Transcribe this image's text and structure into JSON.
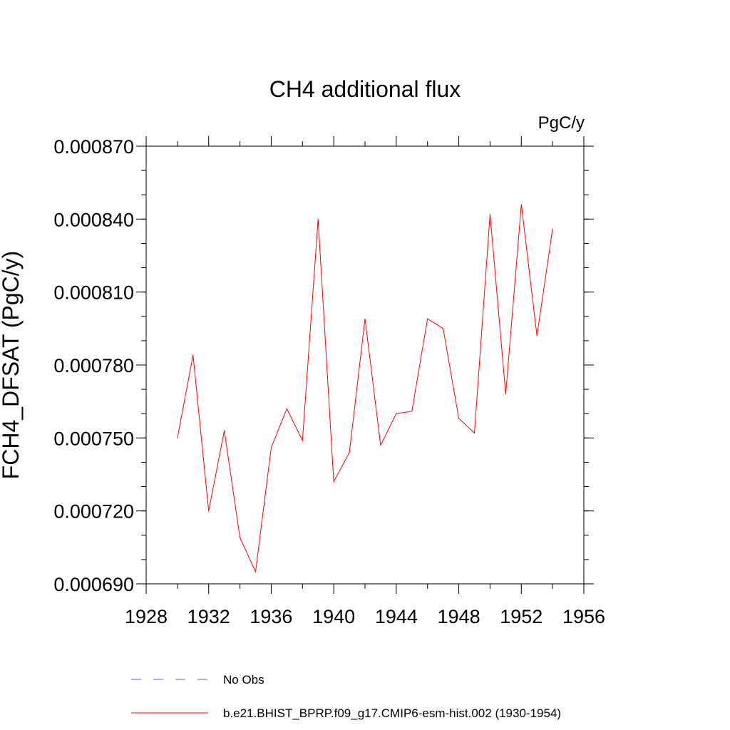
{
  "chart_data": {
    "type": "line",
    "title": "CH4 additional flux",
    "units": "PgC/y",
    "ylabel": "FCH4_DFSAT  (PgC/y)",
    "xlabel": "",
    "xlim": [
      1928,
      1956
    ],
    "ylim": [
      0.00069,
      0.00087
    ],
    "x_ticks": [
      1928,
      1932,
      1936,
      1940,
      1944,
      1948,
      1952,
      1956
    ],
    "x_tick_labels": [
      "1928",
      "1932",
      "1936",
      "1940",
      "1944",
      "1948",
      "1952",
      "1956"
    ],
    "y_ticks": [
      0.00069,
      0.00072,
      0.00075,
      0.00078,
      0.00081,
      0.00084,
      0.00087
    ],
    "y_tick_labels": [
      "0.000690",
      "0.000720",
      "0.000750",
      "0.000780",
      "0.000810",
      "0.000840",
      "0.000870"
    ],
    "grid": false,
    "series": [
      {
        "name": "b.e21.BHIST_BPRP.f09_g17.CMIP6-esm-hist.002 (1930-1954)",
        "color": "#ff0000",
        "x": [
          1930,
          1931,
          1932,
          1933,
          1934,
          1935,
          1936,
          1937,
          1938,
          1939,
          1940,
          1941,
          1942,
          1943,
          1944,
          1945,
          1946,
          1947,
          1948,
          1949,
          1950,
          1951,
          1952,
          1953,
          1954
        ],
        "values": [
          0.00075,
          0.000784,
          0.00072,
          0.000753,
          0.000709,
          0.000695,
          0.000746,
          0.000762,
          0.000749,
          0.00084,
          0.000732,
          0.000744,
          0.000799,
          0.000747,
          0.00076,
          0.000761,
          0.000799,
          0.000795,
          0.000758,
          0.000752,
          0.000842,
          0.000768,
          0.000846,
          0.000792,
          0.000836
        ]
      }
    ],
    "legend": {
      "placement": "bottom",
      "entries": [
        {
          "label": "No Obs",
          "color": "#6a5acd",
          "style": "dashed"
        },
        {
          "label": "b.e21.BHIST_BPRP.f09_g17.CMIP6-esm-hist.002 (1930-1954)",
          "color": "#ff0000",
          "style": "solid"
        }
      ]
    }
  }
}
